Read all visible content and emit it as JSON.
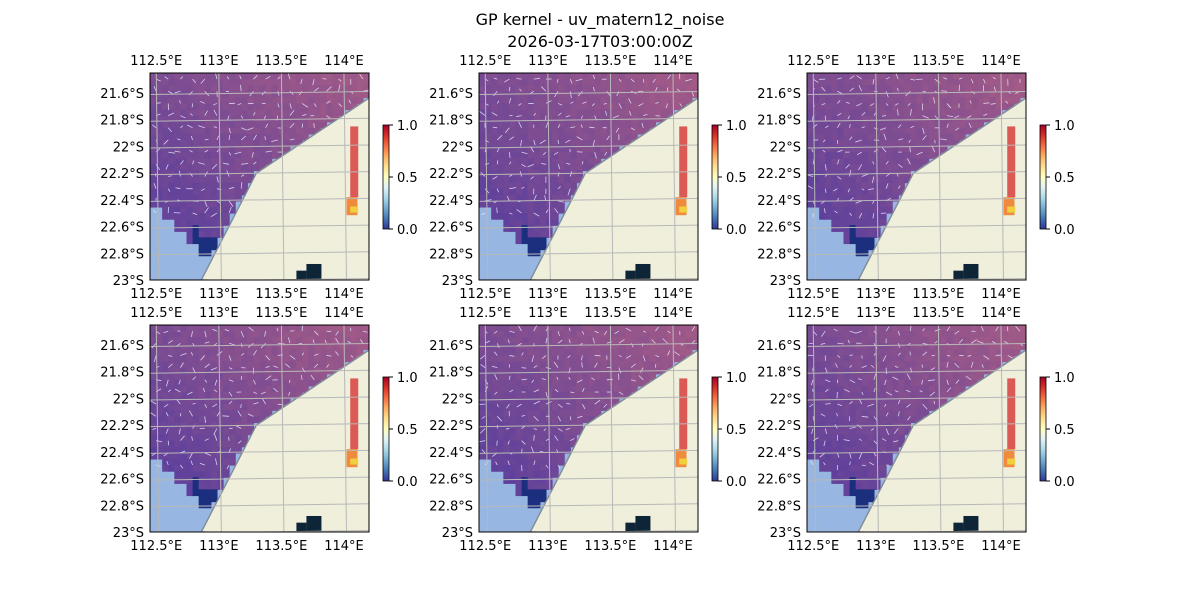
{
  "figure": {
    "title_line1": "GP kernel - uv_matern12_noise",
    "title_line2": "2026-03-17T03:00:00Z"
  },
  "colors": {
    "ocean": "#97b6e1",
    "land": "#efefdc",
    "coastline": "#7f8c97",
    "grid": "#b8b8b8",
    "field_low": "#5a3f9d",
    "field_high": "#a35b86",
    "deep_low": "#1b2f7e",
    "arrow": "#e8e8ff"
  },
  "chart_data": [
    {
      "type": "heatmap",
      "panel": 1,
      "xlabels_top": [
        "112.5°E",
        "113°E",
        "113.5°E",
        "114°E"
      ],
      "xlabels_bottom": [
        "112.5°E",
        "113°E",
        "113.5°E",
        "114°E"
      ],
      "ylabels": [
        "21.6°S",
        "21.8°S",
        "22°S",
        "22.2°S",
        "22.4°S",
        "22.6°S",
        "22.8°S",
        "23°S"
      ],
      "x_values": [
        112.5,
        113.0,
        113.5,
        114.0
      ],
      "y_values": [
        -21.6,
        -21.8,
        -22.0,
        -22.2,
        -22.4,
        -22.6,
        -22.8,
        -23.0
      ],
      "xlim": [
        112.45,
        114.2
      ],
      "ylim": [
        -23.0,
        -21.45
      ],
      "colorbar": {
        "ticks": [
          "0.0",
          "0.5",
          "1.0"
        ],
        "range": [
          0,
          1
        ],
        "colormap": "RdYlBu_r"
      }
    },
    {
      "type": "heatmap",
      "panel": 2,
      "xlabels_top": [
        "112.5°E",
        "113°E",
        "113.5°E",
        "114°E"
      ],
      "xlabels_bottom": [
        "112.5°E",
        "113°E",
        "113.5°E",
        "114°E"
      ],
      "ylabels": [
        "21.6°S",
        "21.8°S",
        "22°S",
        "22.2°S",
        "22.4°S",
        "22.6°S",
        "22.8°S",
        "23°S"
      ],
      "x_values": [
        112.5,
        113.0,
        113.5,
        114.0
      ],
      "y_values": [
        -21.6,
        -21.8,
        -22.0,
        -22.2,
        -22.4,
        -22.6,
        -22.8,
        -23.0
      ],
      "xlim": [
        112.45,
        114.2
      ],
      "ylim": [
        -23.0,
        -21.45
      ],
      "colorbar": {
        "ticks": [
          "0.0",
          "0.5",
          "1.0"
        ],
        "range": [
          0,
          1
        ],
        "colormap": "RdYlBu_r"
      }
    },
    {
      "type": "heatmap",
      "panel": 3,
      "xlabels_top": [
        "112.5°E",
        "113°E",
        "113.5°E",
        "114°E"
      ],
      "xlabels_bottom": [
        "112.5°E",
        "113°E",
        "113.5°E",
        "114°E"
      ],
      "ylabels": [
        "21.6°S",
        "21.8°S",
        "22°S",
        "22.2°S",
        "22.4°S",
        "22.6°S",
        "22.8°S",
        "23°S"
      ],
      "x_values": [
        112.5,
        113.0,
        113.5,
        114.0
      ],
      "y_values": [
        -21.6,
        -21.8,
        -22.0,
        -22.2,
        -22.4,
        -22.6,
        -22.8,
        -23.0
      ],
      "xlim": [
        112.45,
        114.2
      ],
      "ylim": [
        -23.0,
        -21.45
      ],
      "colorbar": {
        "ticks": [
          "0.0",
          "0.5",
          "1.0"
        ],
        "range": [
          0,
          1
        ],
        "colormap": "RdYlBu_r"
      }
    },
    {
      "type": "heatmap",
      "panel": 4,
      "xlabels_top": [
        "112.5°E",
        "113°E",
        "113.5°E",
        "114°E"
      ],
      "xlabels_bottom": [
        "112.5°E",
        "113°E",
        "113.5°E",
        "114°E"
      ],
      "ylabels": [
        "21.6°S",
        "21.8°S",
        "22°S",
        "22.2°S",
        "22.4°S",
        "22.6°S",
        "22.8°S",
        "23°S"
      ],
      "x_values": [
        112.5,
        113.0,
        113.5,
        114.0
      ],
      "y_values": [
        -21.6,
        -21.8,
        -22.0,
        -22.2,
        -22.4,
        -22.6,
        -22.8,
        -23.0
      ],
      "xlim": [
        112.45,
        114.2
      ],
      "ylim": [
        -23.0,
        -21.45
      ],
      "colorbar": {
        "ticks": [
          "0.0",
          "0.5",
          "1.0"
        ],
        "range": [
          0,
          1
        ],
        "colormap": "RdYlBu_r"
      }
    },
    {
      "type": "heatmap",
      "panel": 5,
      "xlabels_top": [
        "112.5°E",
        "113°E",
        "113.5°E",
        "114°E"
      ],
      "xlabels_bottom": [
        "112.5°E",
        "113°E",
        "113.5°E",
        "114°E"
      ],
      "ylabels": [
        "21.6°S",
        "21.8°S",
        "22°S",
        "22.2°S",
        "22.4°S",
        "22.6°S",
        "22.8°S",
        "23°S"
      ],
      "x_values": [
        112.5,
        113.0,
        113.5,
        114.0
      ],
      "y_values": [
        -21.6,
        -21.8,
        -22.0,
        -22.2,
        -22.4,
        -22.6,
        -22.8,
        -23.0
      ],
      "xlim": [
        112.45,
        114.2
      ],
      "ylim": [
        -23.0,
        -21.45
      ],
      "colorbar": {
        "ticks": [
          "0.0",
          "0.5",
          "1.0"
        ],
        "range": [
          0,
          1
        ],
        "colormap": "RdYlBu_r"
      }
    },
    {
      "type": "heatmap",
      "panel": 6,
      "xlabels_top": [
        "112.5°E",
        "113°E",
        "113.5°E",
        "114°E"
      ],
      "xlabels_bottom": [
        "112.5°E",
        "113°E",
        "113.5°E",
        "114°E"
      ],
      "ylabels": [
        "21.6°S",
        "21.8°S",
        "22°S",
        "22.2°S",
        "22.4°S",
        "22.6°S",
        "22.8°S",
        "23°S"
      ],
      "x_values": [
        112.5,
        113.0,
        113.5,
        114.0
      ],
      "y_values": [
        -21.6,
        -21.8,
        -22.0,
        -22.2,
        -22.4,
        -22.6,
        -22.8,
        -23.0
      ],
      "xlim": [
        112.45,
        114.2
      ],
      "ylim": [
        -23.0,
        -21.45
      ],
      "colorbar": {
        "ticks": [
          "0.0",
          "0.5",
          "1.0"
        ],
        "range": [
          0,
          1
        ],
        "colormap": "RdYlBu_r"
      }
    }
  ]
}
